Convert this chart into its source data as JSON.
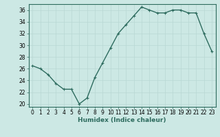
{
  "x": [
    0,
    1,
    2,
    3,
    4,
    5,
    6,
    7,
    8,
    9,
    10,
    11,
    12,
    13,
    14,
    15,
    16,
    17,
    18,
    19,
    20,
    21,
    22,
    23
  ],
  "y": [
    26.5,
    26.0,
    25.0,
    23.5,
    22.5,
    22.5,
    20.0,
    21.0,
    24.5,
    27.0,
    29.5,
    32.0,
    33.5,
    35.0,
    36.5,
    36.0,
    35.5,
    35.5,
    36.0,
    36.0,
    35.5,
    35.5,
    32.0,
    29.0
  ],
  "line_color": "#2d6b5e",
  "marker": "+",
  "marker_size": 3,
  "bg_color": "#cce8e4",
  "grid_color": "#b8d8d4",
  "xlabel": "Humidex (Indice chaleur)",
  "xlim": [
    -0.5,
    23.5
  ],
  "ylim": [
    19.5,
    37.0
  ],
  "yticks": [
    20,
    22,
    24,
    26,
    28,
    30,
    32,
    34,
    36
  ],
  "xticks": [
    0,
    1,
    2,
    3,
    4,
    5,
    6,
    7,
    8,
    9,
    10,
    11,
    12,
    13,
    14,
    15,
    16,
    17,
    18,
    19,
    20,
    21,
    22,
    23
  ],
  "tick_fontsize": 5.5,
  "xlabel_fontsize": 6.5,
  "linewidth": 1.0,
  "markeredgewidth": 0.8,
  "spine_color": "#2d6b5e"
}
